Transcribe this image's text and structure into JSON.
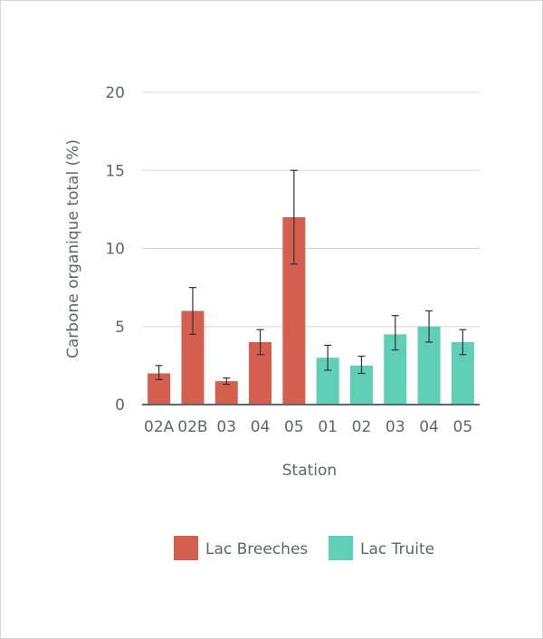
{
  "chart_data": {
    "type": "bar",
    "xlabel": "Station",
    "ylabel": "Carbone organique total (%)",
    "ylim": [
      0,
      20
    ],
    "yticks": [
      0,
      5,
      10,
      15,
      20
    ],
    "grid": true,
    "legend_position": "bottom",
    "colors": {
      "Lac Breeches": "#d45f4f",
      "Lac Truite": "#5fcfb5",
      "axis": "#5b6770",
      "grid": "#d5d5d5",
      "error_bar": "#333333"
    },
    "bars": [
      {
        "category": "02A",
        "series": "Lac Breeches",
        "value": 2.0,
        "err_low": 1.6,
        "err_high": 2.5
      },
      {
        "category": "02B",
        "series": "Lac Breeches",
        "value": 6.0,
        "err_low": 4.5,
        "err_high": 7.5
      },
      {
        "category": "03",
        "series": "Lac Breeches",
        "value": 1.5,
        "err_low": 1.3,
        "err_high": 1.7
      },
      {
        "category": "04",
        "series": "Lac Breeches",
        "value": 4.0,
        "err_low": 3.2,
        "err_high": 4.8
      },
      {
        "category": "05",
        "series": "Lac Breeches",
        "value": 12.0,
        "err_low": 9.0,
        "err_high": 15.0
      },
      {
        "category": "01",
        "series": "Lac Truite",
        "value": 3.0,
        "err_low": 2.2,
        "err_high": 3.8
      },
      {
        "category": "02",
        "series": "Lac Truite",
        "value": 2.5,
        "err_low": 2.0,
        "err_high": 3.1
      },
      {
        "category": "03",
        "series": "Lac Truite",
        "value": 4.5,
        "err_low": 3.5,
        "err_high": 5.7
      },
      {
        "category": "04",
        "series": "Lac Truite",
        "value": 5.0,
        "err_low": 4.0,
        "err_high": 6.0
      },
      {
        "category": "05",
        "series": "Lac Truite",
        "value": 4.0,
        "err_low": 3.2,
        "err_high": 4.8
      }
    ],
    "legend": [
      "Lac Breeches",
      "Lac Truite"
    ]
  }
}
